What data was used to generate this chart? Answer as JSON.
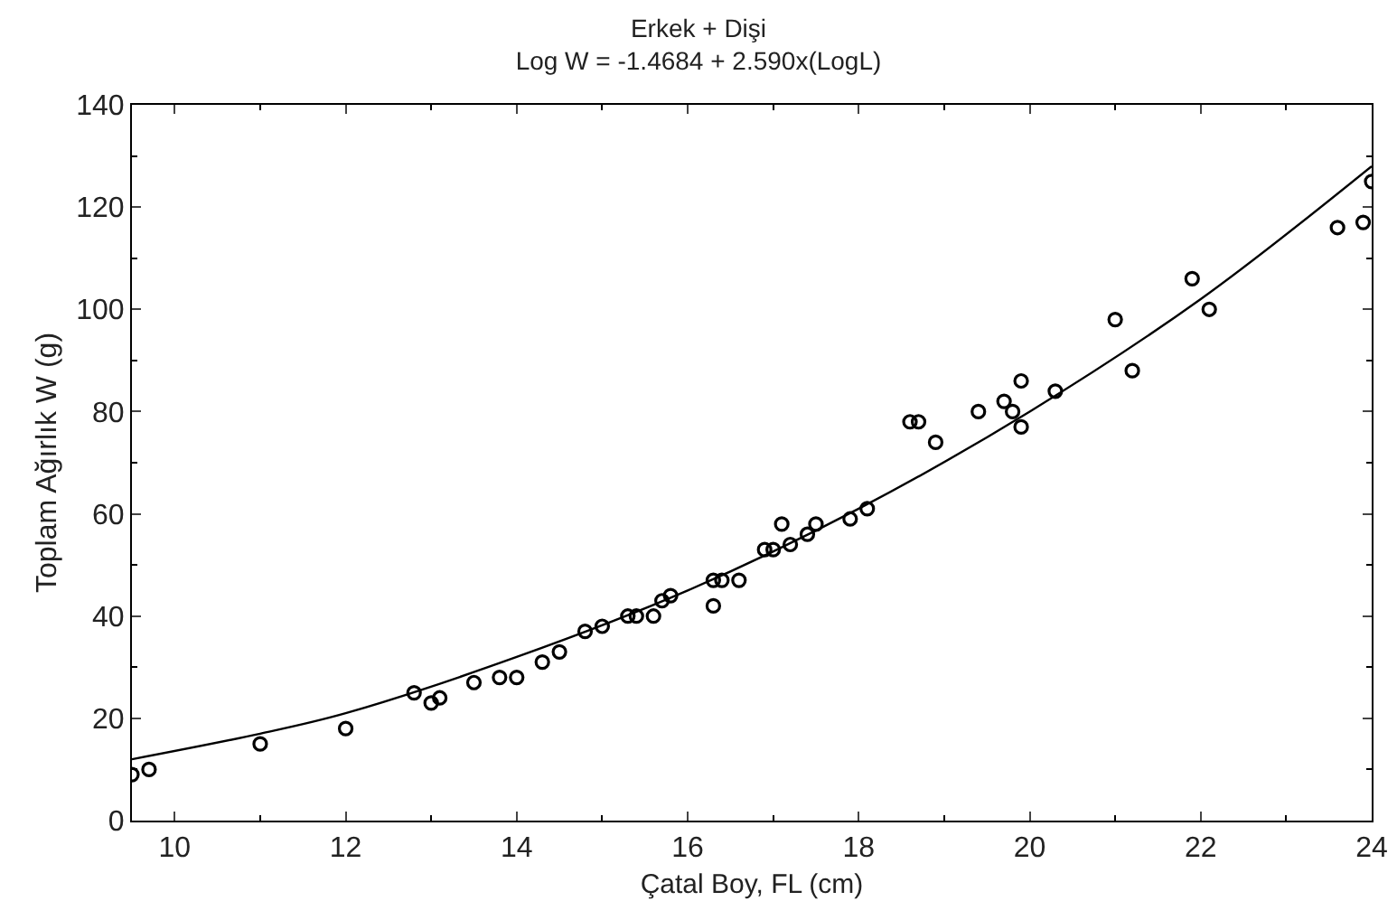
{
  "chart_data": {
    "type": "scatter",
    "title": "Erkek + Dişi",
    "subtitle": "Log W = -1.4684 + 2.590x(LogL)",
    "xlabel": "Çatal Boy, FL (cm)",
    "ylabel": "Toplam Ağırlık W (g)",
    "xlim": [
      9.5,
      24
    ],
    "xticks": [
      10,
      12,
      14,
      16,
      18,
      20,
      22,
      24
    ],
    "ylim": [
      0,
      140
    ],
    "yticks": [
      0,
      20,
      40,
      60,
      80,
      100,
      120,
      140
    ],
    "grid": false,
    "marker": "circle",
    "series": [
      {
        "type": "scatter",
        "color": "#000000",
        "x": [
          9.5,
          9.7,
          11.0,
          12.0,
          12.8,
          13.0,
          13.1,
          13.5,
          13.8,
          14.0,
          14.3,
          14.5,
          14.8,
          15.0,
          15.3,
          15.4,
          15.6,
          15.7,
          15.8,
          16.3,
          16.3,
          16.4,
          16.6,
          16.9,
          17.0,
          17.1,
          17.2,
          17.4,
          17.5,
          17.9,
          18.1,
          18.6,
          18.7,
          18.9,
          19.4,
          19.7,
          19.8,
          19.9,
          19.9,
          20.3,
          21.0,
          21.2,
          21.9,
          22.1,
          23.6,
          23.9,
          24.0
        ],
        "values": [
          9,
          10,
          15,
          18,
          25,
          23,
          24,
          27,
          28,
          28,
          31,
          33,
          37,
          38,
          40,
          40,
          40,
          43,
          44,
          42,
          47,
          47,
          47,
          53,
          53,
          58,
          54,
          56,
          58,
          59,
          61,
          78,
          78,
          74,
          80,
          82,
          80,
          86,
          77,
          84,
          98,
          88,
          106,
          100,
          116,
          117,
          125
        ]
      },
      {
        "type": "line",
        "color": "#000000",
        "marker": "none",
        "line_style": "solid",
        "x": [
          9.5,
          11,
          12,
          14,
          16,
          18,
          20,
          22,
          24
        ],
        "values": [
          12,
          17,
          21,
          32,
          45,
          61,
          80,
          102,
          128
        ]
      }
    ]
  }
}
